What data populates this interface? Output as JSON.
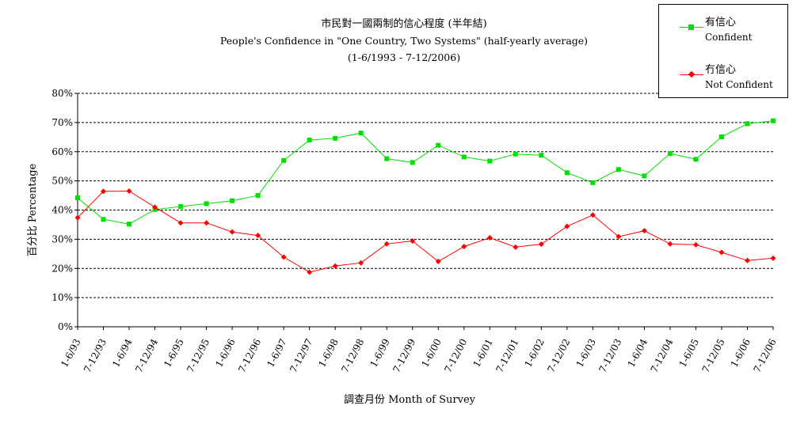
{
  "chart_data": {
    "type": "line",
    "title": "市民對一國兩制的信心程度 (半年結)",
    "subtitle": "People's Confidence in \"One Country, Two Systems\"  (half-yearly average)",
    "subtitle2": "(1-6/1993 - 7-12/2006)",
    "xlabel": "調查月份 Month of Survey",
    "ylabel": "百分比 Percentage",
    "ylim": [
      0,
      80
    ],
    "yticks": [
      "0%",
      "10%",
      "20%",
      "30%",
      "40%",
      "50%",
      "60%",
      "70%",
      "80%"
    ],
    "grid": true,
    "legend_position": "top-right",
    "categories": [
      "1-6/93",
      "7-12/93",
      "1-6/94",
      "7-12/94",
      "1-6/95",
      "7-12/95",
      "1-6/96",
      "7-12/96",
      "1-6/97",
      "7-12/97",
      "1-6/98",
      "7-12/98",
      "1-6/99",
      "7-12/99",
      "1-6/00",
      "7-12/00",
      "1-6/01",
      "7-12/01",
      "1-6/02",
      "7-12/02",
      "1-6/03",
      "7-12/03",
      "1-6/04",
      "7-12/04",
      "1-6/05",
      "7-12/05",
      "1-6/06",
      "7-12/06"
    ],
    "series": [
      {
        "name": "有信心",
        "name_en": "Confident",
        "color": "#00e000",
        "marker": "square",
        "values": [
          44.2,
          36.8,
          35.2,
          40.2,
          41.2,
          42.2,
          43.2,
          45.0,
          57.0,
          64.0,
          64.6,
          66.4,
          57.6,
          56.3,
          62.2,
          58.2,
          56.8,
          59.2,
          58.8,
          52.8,
          49.4,
          53.9,
          51.7,
          59.4,
          57.4,
          65.1,
          69.6,
          70.6
        ]
      },
      {
        "name": "冇信心",
        "name_en": "Not Confident",
        "color": "#ff0000",
        "marker": "diamond",
        "values": [
          37.4,
          46.4,
          46.5,
          41.0,
          35.6,
          35.6,
          32.5,
          31.3,
          23.9,
          18.7,
          20.8,
          21.9,
          28.4,
          29.4,
          22.4,
          27.5,
          30.5,
          27.3,
          28.3,
          34.4,
          38.3,
          30.9,
          32.9,
          28.4,
          28.1,
          25.5,
          22.7,
          23.5
        ]
      }
    ]
  }
}
